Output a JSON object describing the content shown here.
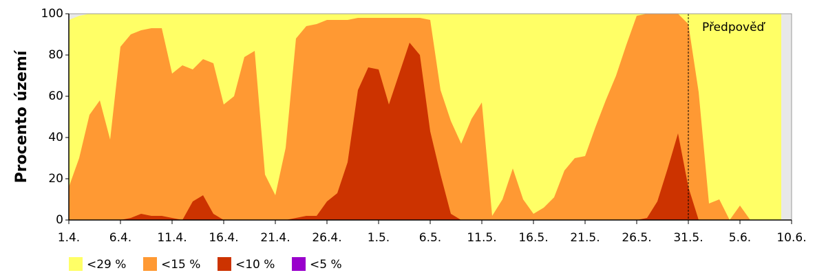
{
  "chart_data": {
    "type": "area",
    "ylabel": "Procento území",
    "categories": [
      "1.4.",
      null,
      null,
      null,
      null,
      "6.4.",
      null,
      null,
      null,
      null,
      "11.4.",
      null,
      null,
      null,
      null,
      "16.4.",
      null,
      null,
      null,
      null,
      "21.4.",
      null,
      null,
      null,
      null,
      "26.4.",
      null,
      null,
      null,
      null,
      "1.5.",
      null,
      null,
      null,
      null,
      "6.5.",
      null,
      null,
      null,
      null,
      "11.5.",
      null,
      null,
      null,
      null,
      "16.5.",
      null,
      null,
      null,
      null,
      "21.5.",
      null,
      null,
      null,
      null,
      "26.5.",
      null,
      null,
      null,
      null,
      "31.5.",
      null,
      null,
      null,
      null,
      "5.6.",
      null,
      null,
      null,
      null,
      "10.6."
    ],
    "series": [
      {
        "name": "<29 %",
        "color": "#ffff66",
        "values": [
          97,
          99,
          100,
          100,
          100,
          100,
          100,
          100,
          100,
          100,
          100,
          100,
          100,
          100,
          100,
          100,
          100,
          100,
          100,
          100,
          100,
          100,
          100,
          100,
          100,
          100,
          100,
          100,
          100,
          100,
          100,
          100,
          100,
          100,
          100,
          100,
          100,
          100,
          100,
          100,
          100,
          100,
          100,
          100,
          100,
          100,
          100,
          100,
          100,
          100,
          100,
          100,
          100,
          100,
          100,
          100,
          100,
          100,
          100,
          100,
          100,
          100,
          100,
          100,
          100,
          100,
          100,
          100,
          100,
          100,
          null
        ]
      },
      {
        "name": "<15 %",
        "color": "#ff9933",
        "values": [
          16,
          30,
          51,
          58,
          39,
          84,
          90,
          92,
          93,
          93,
          71,
          75,
          73,
          78,
          76,
          56,
          60,
          79,
          82,
          22,
          12,
          35,
          88,
          94,
          95,
          97,
          97,
          97,
          98,
          98,
          98,
          98,
          98,
          98,
          98,
          97,
          63,
          48,
          37,
          49,
          57,
          2,
          10,
          25,
          10,
          3,
          6,
          11,
          24,
          30,
          31,
          45,
          58,
          70,
          85,
          99,
          100,
          100,
          100,
          100,
          95,
          62,
          8,
          10,
          0,
          7,
          0,
          0,
          0,
          0,
          null
        ]
      },
      {
        "name": "<10 %",
        "color": "#cc3300",
        "values": [
          0,
          0,
          0,
          0,
          0,
          0,
          1,
          3,
          2,
          2,
          1,
          0,
          9,
          12,
          3,
          0,
          0,
          0,
          0,
          0,
          0,
          0,
          1,
          2,
          2,
          9,
          13,
          28,
          63,
          74,
          73,
          56,
          71,
          86,
          80,
          43,
          22,
          3,
          0,
          0,
          0,
          0,
          0,
          0,
          0,
          0,
          0,
          0,
          0,
          0,
          0,
          0,
          0,
          0,
          0,
          0,
          1,
          9,
          25,
          42,
          16,
          0,
          0,
          0,
          0,
          0,
          0,
          0,
          0,
          0,
          null
        ]
      },
      {
        "name": "<5 %",
        "color": "#9900cc",
        "values": [
          0,
          0,
          0,
          0,
          0,
          0,
          0,
          0,
          0,
          0,
          0,
          0,
          0,
          0,
          0,
          0,
          0,
          0,
          0,
          0,
          0,
          0,
          0,
          0,
          0,
          0,
          0,
          0,
          0,
          0,
          0,
          0,
          0,
          0,
          0,
          0,
          0,
          0,
          0,
          0,
          0,
          0,
          0,
          0,
          0,
          0,
          0,
          0,
          0,
          0,
          0,
          0,
          0,
          0,
          0,
          0,
          0,
          0,
          0,
          0,
          0,
          0,
          0,
          0,
          0,
          0,
          0,
          0,
          0,
          0,
          null
        ]
      }
    ],
    "ylim": [
      0,
      100
    ],
    "yticks": [
      0,
      20,
      40,
      60,
      80,
      100
    ],
    "forecast": {
      "label": "Předpověď",
      "category": "31.5."
    }
  }
}
